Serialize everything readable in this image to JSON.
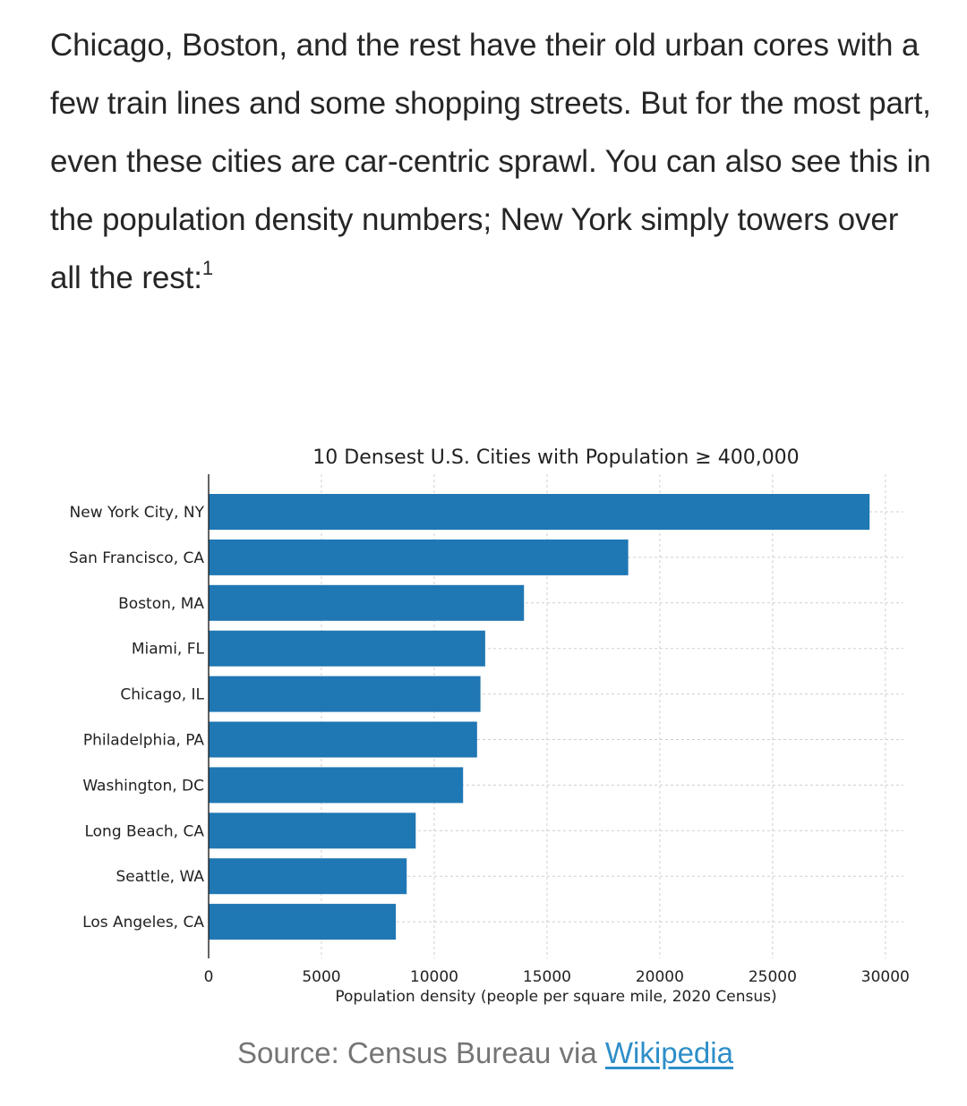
{
  "article": {
    "paragraph": "Chicago, Boston, and the rest have their old urban cores with a few train lines and some shopping streets. But for the most part, even these cities are car-centric sprawl. You can also see this in the population density numbers; New York simply towers over all the rest:",
    "footnote_marker": "1"
  },
  "caption": {
    "prefix": "Source: Census Bureau via ",
    "link_text": "Wikipedia"
  },
  "colors": {
    "bar": "#1f77b4",
    "text": "#262626",
    "caption": "#757575",
    "link": "#2e8ec8"
  },
  "chart_data": {
    "type": "bar",
    "orientation": "horizontal",
    "title": "10 Densest U.S. Cities with Population ≥ 400,000",
    "xlabel": "Population density (people per square mile, 2020 Census)",
    "ylabel": "",
    "xlim": [
      0,
      30800
    ],
    "xticks": [
      0,
      5000,
      10000,
      15000,
      20000,
      25000,
      30000
    ],
    "grid": true,
    "categories": [
      "New York City, NY",
      "San Francisco, CA",
      "Boston, MA",
      "Miami, FL",
      "Chicago, IL",
      "Philadelphia, PA",
      "Washington, DC",
      "Long Beach, CA",
      "Seattle, WA",
      "Los Angeles, CA"
    ],
    "values": [
      29300,
      18600,
      13980,
      12260,
      12050,
      11900,
      11280,
      9180,
      8780,
      8300
    ]
  }
}
